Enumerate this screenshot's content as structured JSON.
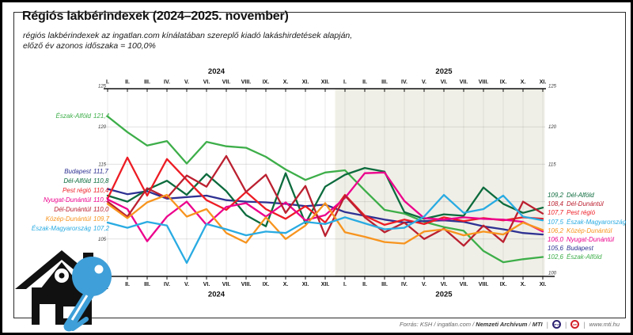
{
  "header": {
    "title": "Régiós lakbérindexek (2024–2025. november)",
    "subtitle_line1": "régiós lakbérindexek az ingatlan.com kínálatában szereplő kiadó lakáshirdetések alapján,",
    "subtitle_line2": "előző év azonos időszaka = 100,0%"
  },
  "chart_data": {
    "type": "line",
    "title": "Régiós lakbérindexek (2024–2025. november)",
    "ylim": [
      100,
      125
    ],
    "yticks_left": [
      125,
      120,
      115,
      105
    ],
    "yticks_right": [
      125,
      120,
      115,
      100
    ],
    "grid": true,
    "baseline_note": "előző év azonos időszaka = 100,0%",
    "x_groups": [
      {
        "year": "2024",
        "months": [
          "I.",
          "II.",
          "III.",
          "IV.",
          "V.",
          "VI.",
          "VII.",
          "VIII.",
          "IX.",
          "X.",
          "XI.",
          "XII."
        ],
        "shaded": false
      },
      {
        "year": "2025",
        "months": [
          "I.",
          "II.",
          "III.",
          "IV.",
          "V.",
          "VI.",
          "VII.",
          "VIII.",
          "IX.",
          "X.",
          "XI."
        ],
        "shaded": true
      }
    ],
    "series": [
      {
        "name": "Észak-Alföld",
        "color": "#3dae49",
        "start_label": "121,4",
        "end_label": "102,6",
        "values": [
          121.4,
          119.3,
          117.5,
          118.1,
          115.1,
          118.0,
          117.4,
          117.2,
          116.0,
          114.3,
          112.9,
          113.9,
          114.2,
          111.5,
          108.9,
          108.4,
          107.3,
          106.6,
          106.1,
          103.4,
          101.9,
          102.3,
          102.6
        ]
      },
      {
        "name": "Budapest",
        "color": "#2e3192",
        "start_label": "111,7",
        "end_label": "105,6",
        "values": [
          111.7,
          111.0,
          111.4,
          110.4,
          110.6,
          110.8,
          110.2,
          110.0,
          109.9,
          109.7,
          109.4,
          109.6,
          108.6,
          108.1,
          107.6,
          107.2,
          107.4,
          107.5,
          107.3,
          106.7,
          106.3,
          105.8,
          105.6
        ]
      },
      {
        "name": "Dél-Alföld",
        "color": "#0c6b3d",
        "start_label": "110,8",
        "end_label": "109,2",
        "values": [
          110.8,
          110.0,
          111.6,
          112.8,
          110.9,
          113.7,
          111.4,
          108.2,
          106.7,
          113.8,
          107.1,
          112.0,
          113.6,
          114.5,
          114.0,
          108.6,
          107.7,
          108.3,
          108.1,
          111.9,
          109.7,
          108.5,
          109.2
        ]
      },
      {
        "name": "Pest régió",
        "color": "#ed1c24",
        "start_label": "110,4",
        "end_label": "107,7",
        "values": [
          110.4,
          115.9,
          110.8,
          115.7,
          112.9,
          110.2,
          108.9,
          111.3,
          109.0,
          107.7,
          109.4,
          107.2,
          110.9,
          108.1,
          106.9,
          107.6,
          107.0,
          107.9,
          107.4,
          107.8,
          107.5,
          107.9,
          107.7
        ]
      },
      {
        "name": "Nyugat-Dunántúl",
        "color": "#ec008c",
        "start_label": "110,3",
        "end_label": "106,0",
        "values": [
          110.3,
          109.0,
          104.7,
          108.0,
          110.0,
          106.9,
          109.3,
          109.8,
          108.0,
          109.9,
          107.5,
          108.2,
          110.5,
          113.8,
          113.9,
          110.1,
          107.8,
          107.6,
          107.9,
          107.7,
          107.6,
          107.3,
          106.0
        ]
      },
      {
        "name": "Dél-Dunántúl",
        "color": "#bb2030",
        "start_label": "110,0",
        "end_label": "108,4",
        "values": [
          110.0,
          108.0,
          111.8,
          110.5,
          113.5,
          112.0,
          116.1,
          111.3,
          113.6,
          108.5,
          112.1,
          105.4,
          110.8,
          107.9,
          105.9,
          107.2,
          105.0,
          106.4,
          104.1,
          106.8,
          104.6,
          110.0,
          108.4
        ]
      },
      {
        "name": "Közép-Dunántúl",
        "color": "#f7941e",
        "start_label": "109,7",
        "end_label": "106,2",
        "values": [
          109.7,
          107.8,
          109.9,
          110.9,
          108.0,
          109.0,
          105.8,
          104.5,
          107.9,
          105.0,
          106.8,
          109.8,
          105.9,
          105.3,
          104.6,
          104.4,
          106.0,
          106.3,
          105.5,
          106.0,
          105.6,
          107.2,
          106.2
        ]
      },
      {
        "name": "Észak-Magyarország",
        "color": "#29abe2",
        "start_label": "107,2",
        "end_label": "107,5",
        "values": [
          107.2,
          106.5,
          107.3,
          106.8,
          101.8,
          107.0,
          106.3,
          105.5,
          106.0,
          105.8,
          107.3,
          107.0,
          107.9,
          107.1,
          106.3,
          106.5,
          108.0,
          110.9,
          108.5,
          109.0,
          110.8,
          108.0,
          107.5
        ]
      }
    ],
    "left_legend_order": [
      0,
      1,
      2,
      3,
      4,
      5,
      6,
      7
    ],
    "right_legend_order": [
      2,
      5,
      3,
      7,
      6,
      4,
      1,
      0
    ],
    "legend_position": "left-and-right-of-plot"
  },
  "footer": {
    "source_prefix": "Forrás: KSH / ingatlan.com / ",
    "source_bold1": "Nemzeti Archívum",
    "source_sep": " / ",
    "source_bold2": "MTI",
    "badge1_label": "MTVA",
    "badge2_label": "MTI",
    "website": "www.mti.hu"
  },
  "logo": {
    "description": "house-and-key-logo"
  }
}
